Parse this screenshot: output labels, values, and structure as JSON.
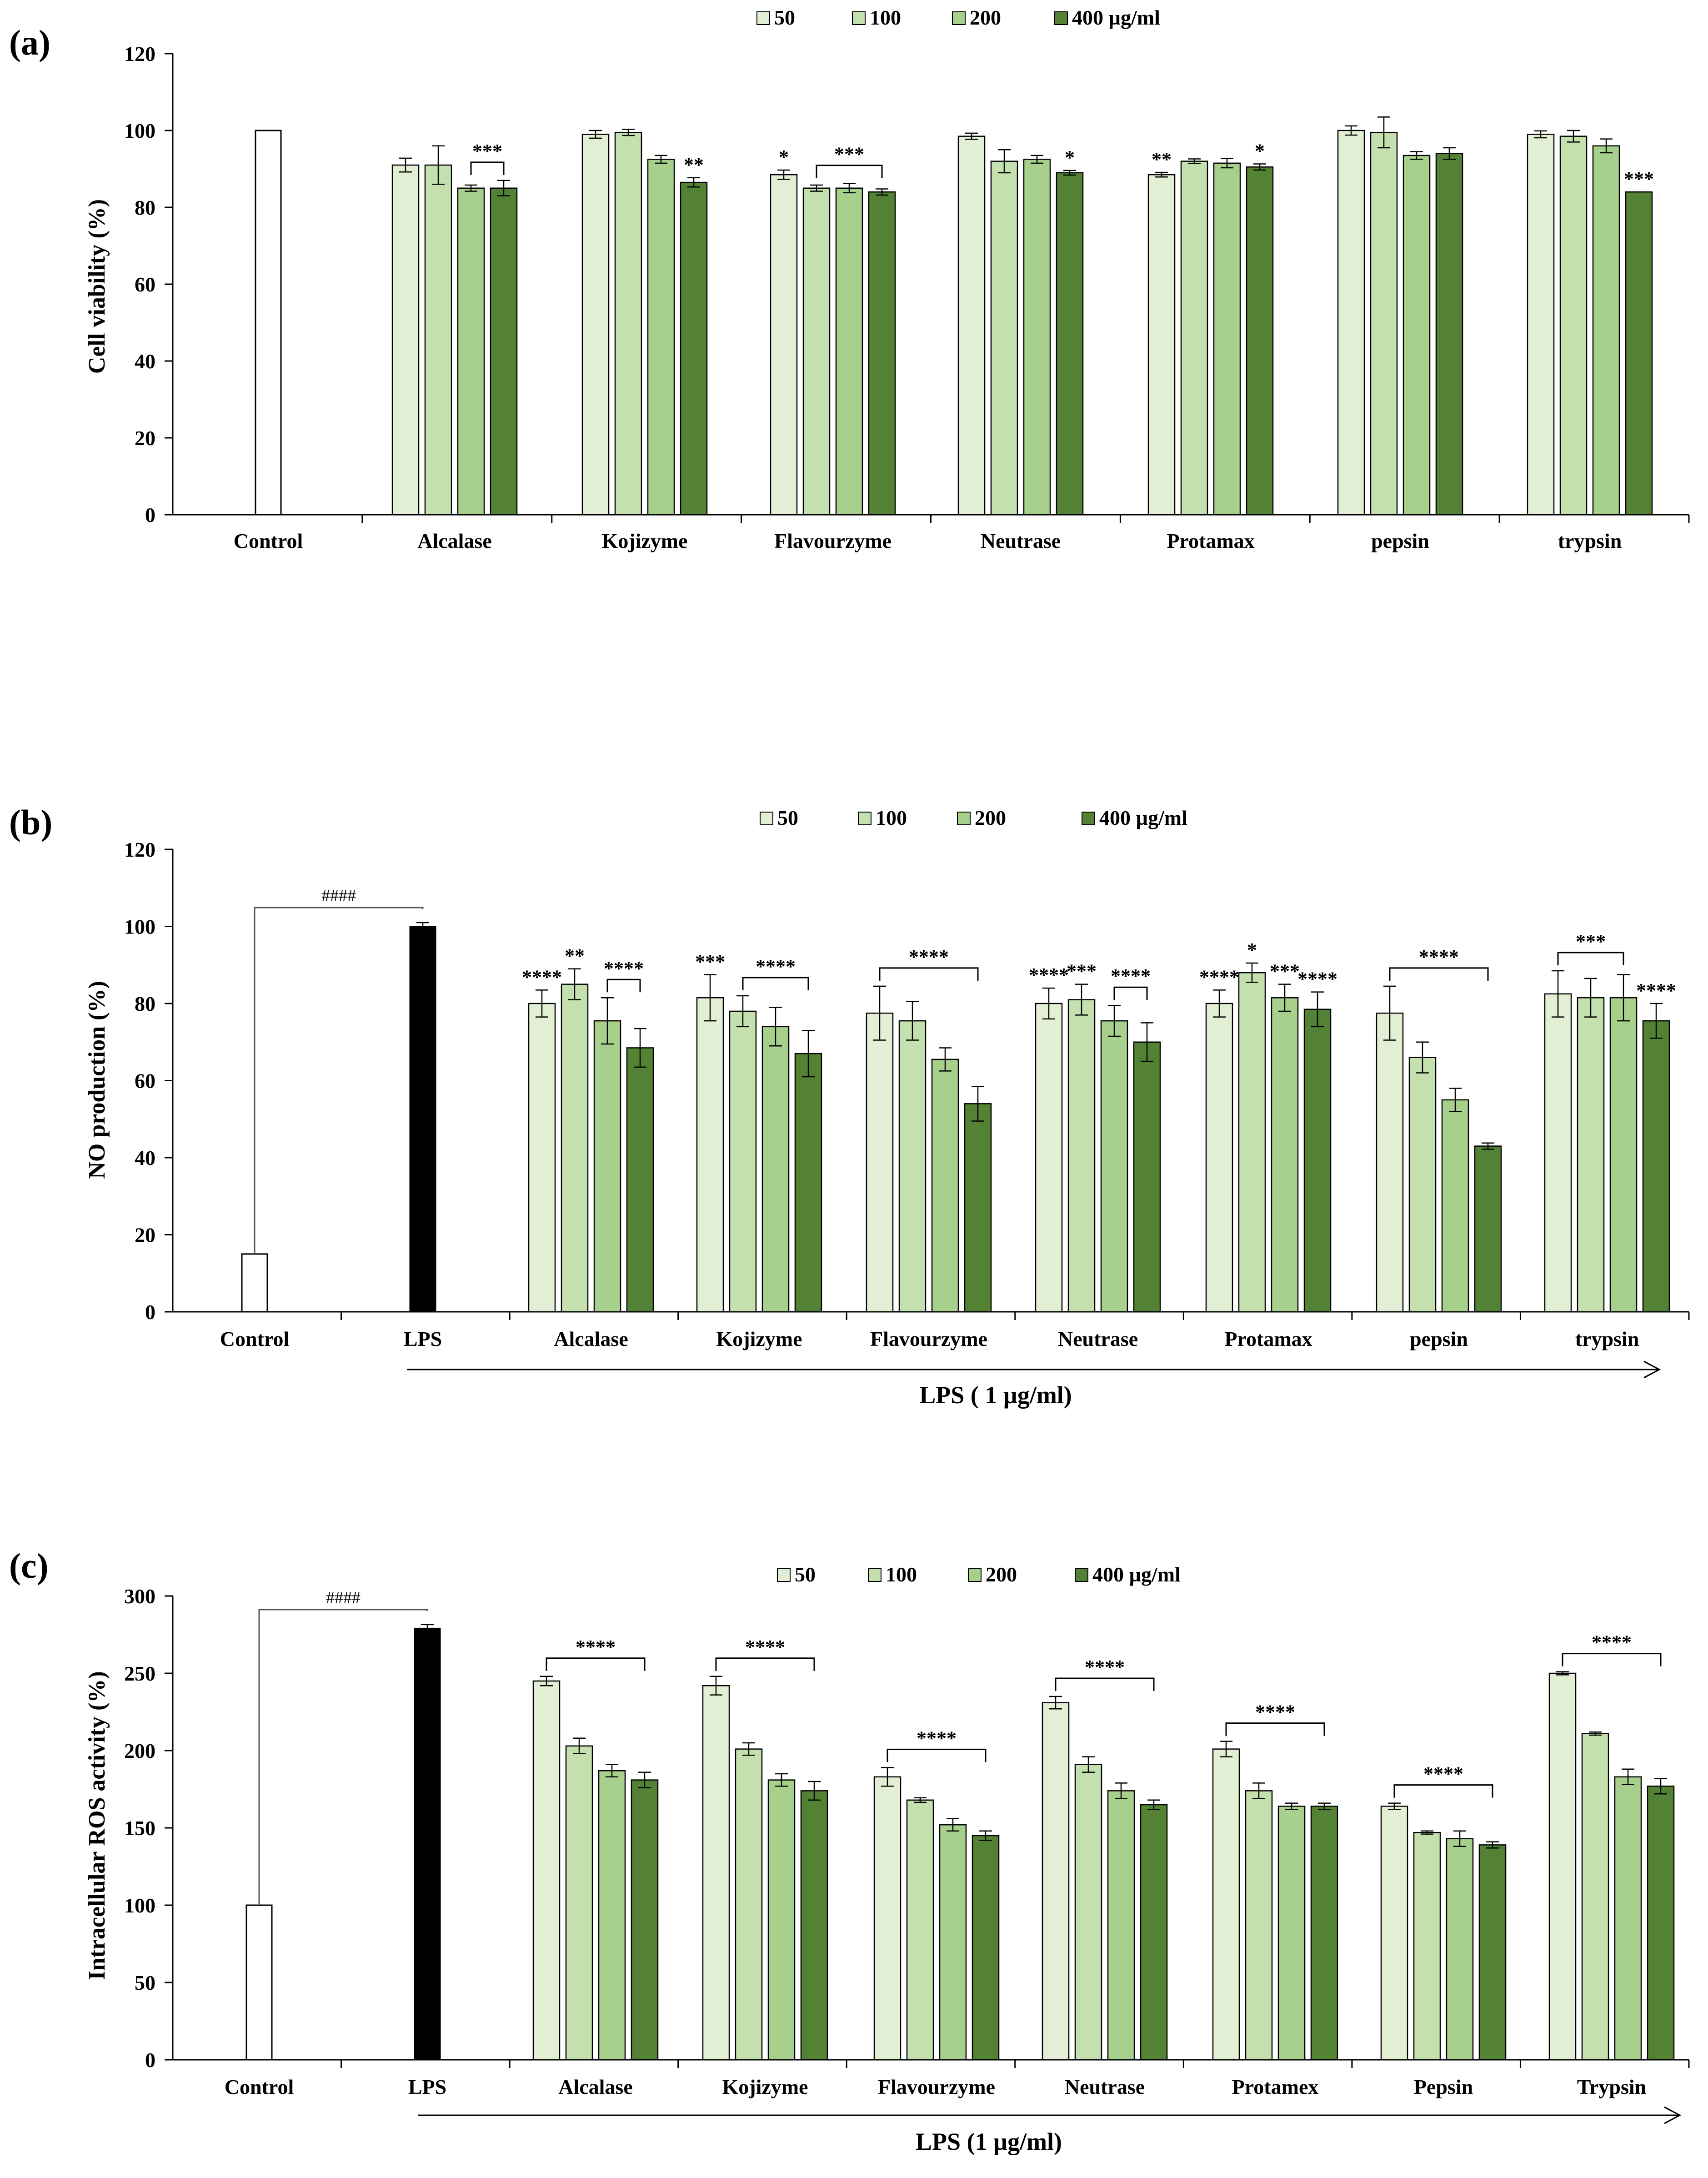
{
  "colors": {
    "c50": "#e3efd5",
    "c100": "#c3e0ae",
    "c200": "#a7d08c",
    "c400": "#548235",
    "control": "#ffffff",
    "lps": "#000000",
    "axis": "#000000"
  },
  "chart_data": [
    {
      "type": "bar",
      "panel_label": "(a)",
      "ylabel": "Cell viability (%)",
      "xlabel": "",
      "ylim": [
        0,
        120
      ],
      "yticks": [
        0,
        20,
        40,
        60,
        80,
        100,
        120
      ],
      "legend": [
        "50",
        "100",
        "200",
        "400 µg/ml"
      ],
      "legend_position": "top-center",
      "categories": [
        "Control",
        "Alcalase",
        "Kojizyme",
        "Flavourzyme",
        "Neutrase",
        "Protamax",
        "pepsin",
        "trypsin"
      ],
      "control": {
        "value": 100,
        "error": 0
      },
      "series": [
        {
          "name": "50",
          "values": [
            null,
            91,
            99,
            88.5,
            98.5,
            88.5,
            100,
            99
          ],
          "errors": [
            null,
            1.8,
            1,
            1.2,
            0.8,
            0.6,
            1.2,
            0.9
          ]
        },
        {
          "name": "100",
          "values": [
            null,
            91,
            99.5,
            85,
            92,
            92,
            99.5,
            98.5
          ],
          "errors": [
            null,
            5,
            0.8,
            0.8,
            3,
            0.6,
            4,
            1.5
          ]
        },
        {
          "name": "200",
          "values": [
            null,
            85,
            92.5,
            85,
            92.5,
            91.5,
            93.5,
            96
          ],
          "errors": [
            null,
            0.8,
            1,
            1.2,
            1,
            1.2,
            1,
            1.8
          ]
        },
        {
          "name": "400 µg/ml",
          "values": [
            null,
            85,
            86.5,
            84,
            89,
            90.5,
            94,
            84
          ],
          "errors": [
            null,
            2,
            1.2,
            0.8,
            0.6,
            0.8,
            1.5,
            0
          ]
        }
      ],
      "annotations": [
        {
          "category": 1,
          "from": 2,
          "to": 3,
          "text": "***",
          "bracket": true
        },
        {
          "category": 2,
          "series": 3,
          "text": "**"
        },
        {
          "category": 3,
          "series": 0,
          "text": "*"
        },
        {
          "category": 3,
          "from": 1,
          "to": 3,
          "text": "***",
          "bracket": true
        },
        {
          "category": 4,
          "series": 3,
          "text": "*"
        },
        {
          "category": 5,
          "series": 0,
          "text": "**"
        },
        {
          "category": 5,
          "series": 3,
          "text": "*"
        },
        {
          "category": 7,
          "series": 3,
          "text": "***"
        }
      ]
    },
    {
      "type": "bar",
      "panel_label": "(b)",
      "ylabel": "NO production  (%)",
      "xlabel": "LPS ( 1 µg/ml)",
      "ylim": [
        0,
        120
      ],
      "yticks": [
        0,
        20,
        40,
        60,
        80,
        100,
        120
      ],
      "legend": [
        "50",
        "100",
        "200",
        "400 µg/ml"
      ],
      "legend_position": "top-center",
      "categories": [
        "Control",
        "LPS",
        "Alcalase",
        "Kojizyme",
        "Flavourzyme",
        "Neutrase",
        "Protamax",
        "pepsin",
        "trypsin"
      ],
      "control": {
        "value": 15,
        "error": 0
      },
      "lps": {
        "value": 100,
        "error": 1,
        "sig": "####"
      },
      "series": [
        {
          "name": "50",
          "values": [
            null,
            null,
            80,
            81.5,
            77.5,
            80,
            80,
            77.5,
            82.5
          ],
          "errors": [
            null,
            null,
            3.5,
            6,
            7,
            4,
            3.5,
            7,
            6
          ]
        },
        {
          "name": "100",
          "values": [
            null,
            null,
            85,
            78,
            75.5,
            81,
            88,
            66,
            81.5
          ],
          "errors": [
            null,
            null,
            4,
            4,
            5,
            4,
            2.5,
            4,
            5
          ]
        },
        {
          "name": "200",
          "values": [
            null,
            null,
            75.5,
            74,
            65.5,
            75.5,
            81.5,
            55,
            81.5
          ],
          "errors": [
            null,
            null,
            6,
            5,
            3,
            4,
            3.5,
            3,
            6
          ]
        },
        {
          "name": "400 µg/ml",
          "values": [
            null,
            null,
            68.5,
            67,
            54,
            70,
            78.5,
            43,
            75.5
          ],
          "errors": [
            null,
            null,
            5,
            6,
            4.5,
            5,
            4.5,
            0.8,
            4.5
          ]
        }
      ],
      "annotations": [
        {
          "category": 2,
          "series": 0,
          "text": "****"
        },
        {
          "category": 2,
          "series": 1,
          "text": "**"
        },
        {
          "category": 2,
          "from": 2,
          "to": 3,
          "text": "****",
          "bracket": true
        },
        {
          "category": 3,
          "series": 0,
          "text": "***"
        },
        {
          "category": 3,
          "from": 1,
          "to": 3,
          "text": "****",
          "bracket": true
        },
        {
          "category": 4,
          "from": 0,
          "to": 3,
          "text": "****",
          "bracket": true
        },
        {
          "category": 5,
          "series": 0,
          "text": "****"
        },
        {
          "category": 5,
          "series": 1,
          "text": "***"
        },
        {
          "category": 5,
          "from": 2,
          "to": 3,
          "text": "****",
          "bracket": true
        },
        {
          "category": 6,
          "series": 0,
          "text": "****"
        },
        {
          "category": 6,
          "series": 1,
          "text": "*"
        },
        {
          "category": 6,
          "series": 2,
          "text": "***"
        },
        {
          "category": 6,
          "series": 3,
          "text": "****"
        },
        {
          "category": 7,
          "from": 0,
          "to": 3,
          "text": "****",
          "bracket": true
        },
        {
          "category": 8,
          "from": 0,
          "to": 2,
          "text": "***",
          "bracket": true
        },
        {
          "category": 8,
          "series": 3,
          "text": "****"
        }
      ]
    },
    {
      "type": "bar",
      "panel_label": "(c)",
      "ylabel": "Intracellular  ROS activity (%)",
      "xlabel": "LPS (1 µg/ml)",
      "ylim": [
        0,
        300
      ],
      "yticks": [
        0,
        50,
        100,
        150,
        200,
        250,
        300
      ],
      "legend": [
        "50",
        "100",
        "200",
        "400 µg/ml"
      ],
      "legend_position": "top-center",
      "categories": [
        "Control",
        "LPS",
        "Alcalase",
        "Kojizyme",
        "Flavourzyme",
        "Neutrase",
        "Protamex",
        "Pepsin",
        "Trypsin"
      ],
      "control": {
        "value": 100,
        "error": 0
      },
      "lps": {
        "value": 279,
        "error": 2.5,
        "sig": "####"
      },
      "series": [
        {
          "name": "50",
          "values": [
            null,
            null,
            245,
            242,
            183,
            231,
            201,
            164,
            250
          ],
          "errors": [
            null,
            null,
            3,
            6,
            6,
            4,
            5,
            2,
            1
          ]
        },
        {
          "name": "100",
          "values": [
            null,
            null,
            203,
            201,
            168,
            191,
            174,
            147,
            211
          ],
          "errors": [
            null,
            null,
            5,
            4,
            1.5,
            5,
            5,
            1,
            1
          ]
        },
        {
          "name": "200",
          "values": [
            null,
            null,
            187,
            181,
            152,
            174,
            164,
            143,
            183
          ],
          "errors": [
            null,
            null,
            4,
            4,
            4,
            5,
            2,
            5,
            5
          ]
        },
        {
          "name": "400 µg/ml",
          "values": [
            null,
            null,
            181,
            174,
            145,
            165,
            164,
            139,
            177
          ],
          "errors": [
            null,
            null,
            5,
            6,
            3,
            3,
            2,
            2,
            5
          ]
        }
      ],
      "annotations": [
        {
          "category": 2,
          "from": 0,
          "to": 3,
          "text": "****",
          "bracket": true
        },
        {
          "category": 3,
          "from": 0,
          "to": 3,
          "text": "****",
          "bracket": true
        },
        {
          "category": 4,
          "from": 0,
          "to": 3,
          "text": "****",
          "bracket": true
        },
        {
          "category": 5,
          "from": 0,
          "to": 3,
          "text": "****",
          "bracket": true
        },
        {
          "category": 6,
          "from": 0,
          "to": 3,
          "text": "****",
          "bracket": true
        },
        {
          "category": 7,
          "from": 0,
          "to": 3,
          "text": "****",
          "bracket": true
        },
        {
          "category": 8,
          "from": 0,
          "to": 3,
          "text": "****",
          "bracket": true
        }
      ]
    }
  ]
}
